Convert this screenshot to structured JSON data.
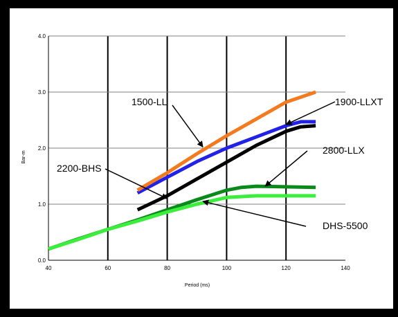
{
  "chart_data": {
    "type": "line",
    "title": "",
    "xlabel": "Period (ms)",
    "ylabel": "Bar-m",
    "xlim": [
      40,
      140
    ],
    "ylim": [
      0.0,
      4.0
    ],
    "x_ticks": [
      "40",
      "60",
      "80",
      "100",
      "120",
      "140"
    ],
    "y_ticks": [
      "0.0",
      "1.0",
      "2.0",
      "3.0",
      "4.0"
    ],
    "grid": {
      "vertical": true,
      "horizontal": true
    },
    "series": [
      {
        "name": "1500-LL",
        "color": "#f47a20",
        "points": [
          [
            70,
            1.25
          ],
          [
            80,
            1.56
          ],
          [
            90,
            1.9
          ],
          [
            100,
            2.22
          ],
          [
            110,
            2.52
          ],
          [
            120,
            2.82
          ],
          [
            130,
            3.0
          ]
        ]
      },
      {
        "name": "1900-LLXT",
        "color": "#2222e6",
        "points": [
          [
            70,
            1.2
          ],
          [
            80,
            1.48
          ],
          [
            90,
            1.76
          ],
          [
            100,
            2.0
          ],
          [
            110,
            2.2
          ],
          [
            120,
            2.4
          ],
          [
            125,
            2.47
          ],
          [
            130,
            2.47
          ]
        ]
      },
      {
        "name": "2200-BHS",
        "color": "#000000",
        "points": [
          [
            70,
            0.9
          ],
          [
            80,
            1.15
          ],
          [
            90,
            1.45
          ],
          [
            100,
            1.75
          ],
          [
            110,
            2.05
          ],
          [
            120,
            2.3
          ],
          [
            125,
            2.38
          ],
          [
            130,
            2.4
          ]
        ]
      },
      {
        "name": "2800-LLX",
        "color": "#0a8a1a",
        "points": [
          [
            40,
            0.2
          ],
          [
            50,
            0.38
          ],
          [
            60,
            0.55
          ],
          [
            70,
            0.72
          ],
          [
            80,
            0.9
          ],
          [
            90,
            1.08
          ],
          [
            100,
            1.25
          ],
          [
            105,
            1.3
          ],
          [
            110,
            1.32
          ],
          [
            130,
            1.3
          ]
        ]
      },
      {
        "name": "DHS-5500",
        "color": "#3cee3c",
        "points": [
          [
            40,
            0.2
          ],
          [
            50,
            0.37
          ],
          [
            60,
            0.55
          ],
          [
            70,
            0.7
          ],
          [
            80,
            0.86
          ],
          [
            90,
            1.0
          ],
          [
            100,
            1.12
          ],
          [
            110,
            1.15
          ],
          [
            130,
            1.15
          ]
        ]
      }
    ],
    "annotations": [
      {
        "text": "1500-LL",
        "series": 0,
        "arrow_to": [
          92,
          2.02
        ]
      },
      {
        "text": "1900-LLXT",
        "series": 1,
        "arrow_to": [
          120,
          2.42
        ]
      },
      {
        "text": "2200-BHS",
        "series": 2,
        "arrow_to": [
          80,
          1.1
        ]
      },
      {
        "text": "2800-LLX",
        "series": 3,
        "arrow_to": [
          113,
          1.32
        ]
      },
      {
        "text": "DHS-5500",
        "series": 4,
        "arrow_to": [
          92,
          1.05
        ]
      }
    ]
  }
}
